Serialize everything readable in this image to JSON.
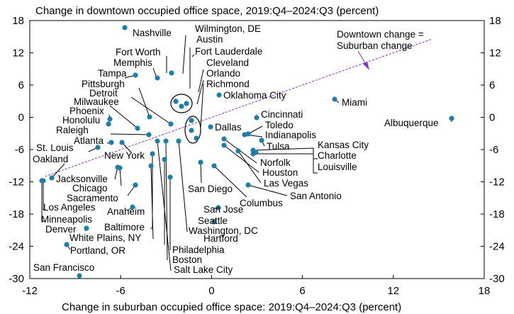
{
  "chart_data": {
    "type": "scatter",
    "title": "Change in downtown occupied office space, 2019:Q4–2024:Q3 (percent)",
    "xlabel": "Change in suburban occupied office space: 2019:Q4–2024:Q3 (percent)",
    "xlim": [
      -12,
      18
    ],
    "ylim": [
      -30,
      18
    ],
    "xticks": [
      -12,
      -6,
      0,
      6,
      12,
      18
    ],
    "yticks": [
      18,
      12,
      6,
      0,
      -6,
      -12,
      -18,
      -24,
      -30
    ],
    "grid": false,
    "reference_line": {
      "label_line1": "Downtown change =",
      "label_line2": "Suburban change",
      "slope": 1,
      "color": "#8b2fc9"
    },
    "dot_color": "#1f7ea8",
    "points": [
      {
        "name": "Nashville",
        "x": -6.0,
        "y": 16.5
      },
      {
        "name": "Fort Worth",
        "x": -3.0,
        "y": 8.0
      },
      {
        "name": "Memphis",
        "x": -5.0,
        "y": 7.0
      },
      {
        "name": "Tampa",
        "x": -6.5,
        "y": 7.5
      },
      {
        "name": "Pittsburgh",
        "x": -4.5,
        "y": 4.0
      },
      {
        "name": "Detroit",
        "x": -3.5,
        "y": 3.5
      },
      {
        "name": "Milwaukee",
        "x": -5.0,
        "y": -2.0
      },
      {
        "name": "Phoenix",
        "x": -7.0,
        "y": -1.5
      },
      {
        "name": "Honolulu",
        "x": -7.2,
        "y": -0.5
      },
      {
        "name": "Raleigh",
        "x": -3.5,
        "y": -3.5
      },
      {
        "name": "Atlanta",
        "x": -5.5,
        "y": -5.0
      },
      {
        "name": "New York",
        "x": -4.0,
        "y": -5.0
      },
      {
        "name": "St. Louis",
        "x": -8.2,
        "y": -6.0
      },
      {
        "name": "Oakland",
        "x": -9.5,
        "y": -9.5
      },
      {
        "name": "Jacksonville",
        "x": -6.5,
        "y": -9.5
      },
      {
        "name": "Chicago",
        "x": -6.8,
        "y": -10.5
      },
      {
        "name": "Sacramento",
        "x": -4.0,
        "y": -12.5
      },
      {
        "name": "Los Angeles",
        "x": -10.2,
        "y": -11.3
      },
      {
        "name": "Minneapolis",
        "x": -10.8,
        "y": -12.0
      },
      {
        "name": "Anaheim",
        "x": -5.5,
        "y": -16.5
      },
      {
        "name": "Denver",
        "x": -7.8,
        "y": -20.5
      },
      {
        "name": "Portland, OR",
        "x": -8.0,
        "y": -23.5
      },
      {
        "name": "San Francisco",
        "x": -7.0,
        "y": -29.5
      },
      {
        "name": "Baltimore",
        "x": -3.3,
        "y": -7.0
      },
      {
        "name": "White Plains, NY",
        "x": -3.3,
        "y": -9.0
      },
      {
        "name": "Hartford",
        "x": -2.2,
        "y": -9.0
      },
      {
        "name": "Philadelphia",
        "x": -1.8,
        "y": -11.5
      },
      {
        "name": "Boston",
        "x": -2.5,
        "y": -8.0
      },
      {
        "name": "Salt Lake City",
        "x": -3.0,
        "y": -5.0
      },
      {
        "name": "Wilmington, DE",
        "x": -2.2,
        "y": 2.8
      },
      {
        "name": "Austin",
        "x": -1.7,
        "y": 2.2
      },
      {
        "name": "Fort Lauderdale",
        "x": -1.3,
        "y": 2.5
      },
      {
        "name": "Cleveland",
        "x": -1.6,
        "y": -0.5
      },
      {
        "name": "Orlando",
        "x": -1.5,
        "y": -2.5
      },
      {
        "name": "Richmond",
        "x": -1.2,
        "y": -4.0
      },
      {
        "name": "Oklahoma City",
        "x": 0.5,
        "y": 4.0
      },
      {
        "name": "Dallas",
        "x": -0.2,
        "y": -2.0
      },
      {
        "name": "San Diego",
        "x": -0.8,
        "y": -8.5
      },
      {
        "name": "San Jose",
        "x": 0.5,
        "y": -17.0
      },
      {
        "name": "Seattle",
        "x": -0.2,
        "y": -19.5
      },
      {
        "name": "Washington, DC",
        "x": -1.8,
        "y": -5.0
      },
      {
        "name": "Columbus",
        "x": 0.3,
        "y": -9.5
      },
      {
        "name": "San Antonio",
        "x": 2.5,
        "y": -12.5
      },
      {
        "name": "Cincinnati",
        "x": 3.0,
        "y": 0.0
      },
      {
        "name": "Toledo",
        "x": 2.3,
        "y": -3.2
      },
      {
        "name": "Indianapolis",
        "x": 2.0,
        "y": -3.5
      },
      {
        "name": "Tulsa",
        "x": 3.5,
        "y": -4.5
      },
      {
        "name": "Norfolk",
        "x": 1.0,
        "y": -4.0
      },
      {
        "name": "Houston",
        "x": 1.0,
        "y": -5.5
      },
      {
        "name": "Las Vegas",
        "x": 1.8,
        "y": -6.5
      },
      {
        "name": "Kansas City",
        "x": 2.8,
        "y": -6.3
      },
      {
        "name": "Charlotte",
        "x": 2.6,
        "y": -7.0
      },
      {
        "name": "Louisville",
        "x": 3.2,
        "y": -7.2
      },
      {
        "name": "Miami",
        "x": 8.2,
        "y": 3.0
      },
      {
        "name": "Albuquerque",
        "x": 15.8,
        "y": -0.5
      }
    ],
    "tick_labels_left": [
      "18",
      "12",
      "6",
      "0",
      "-6",
      "-12",
      "-18",
      "-24",
      "-30"
    ],
    "tick_labels_right": [
      "18",
      "12",
      "6",
      "0",
      "-6",
      "-12",
      "-18",
      "-24",
      "-30"
    ],
    "tick_labels_bottom": [
      "-12",
      "-6",
      "0",
      "6",
      "12",
      "18"
    ]
  }
}
